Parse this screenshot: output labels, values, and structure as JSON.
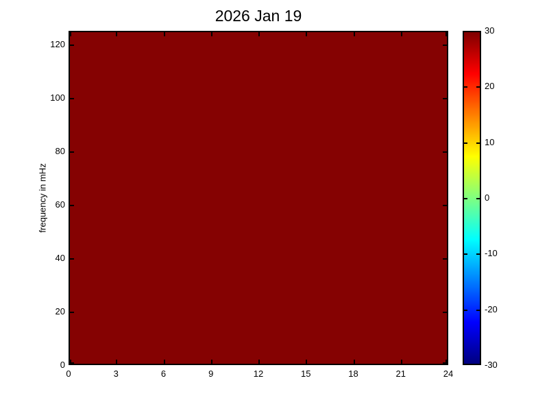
{
  "figure": {
    "background_color": "#FFFFFF",
    "axis_color": "#000000"
  },
  "chart_data": {
    "type": "heatmap",
    "title": "2026 Jan 19",
    "xlabel": "",
    "ylabel": "frequency in mHz",
    "xlim": [
      0,
      24
    ],
    "ylim": [
      0,
      125
    ],
    "x_ticks": [
      0,
      3,
      6,
      9,
      12,
      15,
      18,
      21,
      24
    ],
    "y_ticks": [
      0,
      20,
      40,
      60,
      80,
      100,
      120
    ],
    "grid": false,
    "legend_position": "colorbar-right",
    "data": {
      "uniform_fill": true,
      "displayed_value": 30,
      "note": "entire time-frequency plane rendered at or above the colormap maximum (solid dark red)"
    },
    "fill_color": "#850202",
    "colorbar": {
      "min": -30,
      "max": 30,
      "ticks": [
        30,
        20,
        10,
        0,
        -10,
        -20,
        -30
      ],
      "colormap": "jet",
      "gradient_top_to_bottom": [
        {
          "pos": 0,
          "color": "#7F0000"
        },
        {
          "pos": 12.5,
          "color": "#FF0000"
        },
        {
          "pos": 37.5,
          "color": "#FFFF00"
        },
        {
          "pos": 62.5,
          "color": "#00FFFF"
        },
        {
          "pos": 87.5,
          "color": "#0000FF"
        },
        {
          "pos": 100,
          "color": "#00007F"
        }
      ]
    }
  }
}
